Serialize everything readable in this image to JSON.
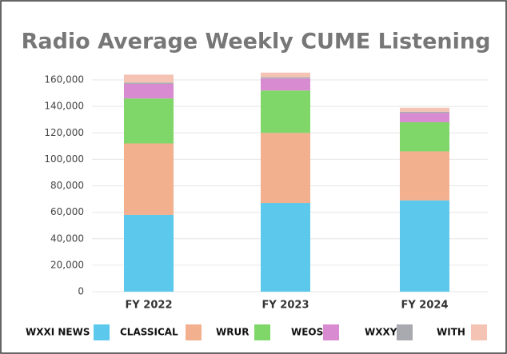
{
  "chart_data": {
    "type": "stacked_bar",
    "title": "Radio Average Weekly CUME Listening",
    "categories": [
      "FY 2022",
      "FY 2023",
      "FY 2024"
    ],
    "series": [
      {
        "name": "WXXI NEWS",
        "color": "#5bc8ec",
        "values": [
          58000,
          67000,
          69000
        ]
      },
      {
        "name": "CLASSICAL",
        "color": "#f2b08f",
        "values": [
          54000,
          53000,
          37000
        ]
      },
      {
        "name": "WRUR",
        "color": "#7fd669",
        "values": [
          34000,
          32000,
          22000
        ]
      },
      {
        "name": "WEOS",
        "color": "#d98bd1",
        "values": [
          11000,
          9000,
          7000
        ]
      },
      {
        "name": "WXXY",
        "color": "#a9a9b0",
        "values": [
          1000,
          1000,
          1000
        ]
      },
      {
        "name": "WITH",
        "color": "#f4c3b4",
        "values": [
          6000,
          3500,
          3000
        ]
      }
    ],
    "ylim": [
      0,
      160000
    ],
    "yticks": [
      0,
      {
        "value": 20000,
        "label": "20,000"
      },
      {
        "value": 40000,
        "label": "40,000"
      },
      {
        "value": 60000,
        "label": "60,000"
      },
      {
        "value": 80000,
        "label": "80,000"
      },
      {
        "value": 100000,
        "label": "100,000"
      },
      {
        "value": 120000,
        "label": "120,000"
      },
      {
        "value": 140000,
        "label": "140,000"
      },
      {
        "value": 160000,
        "label": "160,000"
      }
    ],
    "grid": true
  }
}
